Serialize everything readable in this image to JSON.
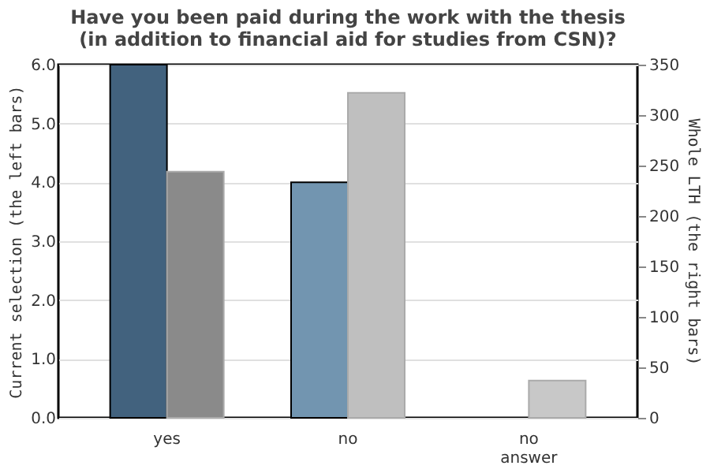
{
  "chart_data": {
    "type": "bar",
    "title": "Have you been paid during the work with the thesis\n(in addition to financial aid for studies from CSN)?",
    "categories": [
      "yes",
      "no",
      "no answer"
    ],
    "ylabel": "Current selection (the left bars)",
    "y2label": "Whole LTH (the right bars)",
    "series": [
      {
        "colors": [
          "#42627e",
          "#7295b0",
          "#7295b0"
        ],
        "values": [
          6,
          4,
          null
        ]
      },
      {
        "axis": "y2",
        "colors": [
          "#8a8a8a",
          "#bfbfbf",
          "#c8c8c8"
        ],
        "values": [
          244,
          322,
          37
        ]
      }
    ],
    "ylim": [
      0,
      6
    ],
    "yticks": [
      {
        "value": 0,
        "label": "0.0"
      },
      {
        "value": 1,
        "label": "1.0"
      },
      {
        "value": 2,
        "label": "2.0"
      },
      {
        "value": 3,
        "label": "3.0"
      },
      {
        "value": 4,
        "label": "4.0"
      },
      {
        "value": 5,
        "label": "5.0"
      },
      {
        "value": 6,
        "label": "6.0"
      }
    ],
    "y2lim": [
      0,
      350
    ],
    "y2ticks": [
      0,
      50,
      100,
      150,
      200,
      250,
      300,
      350
    ],
    "grid": "y"
  }
}
